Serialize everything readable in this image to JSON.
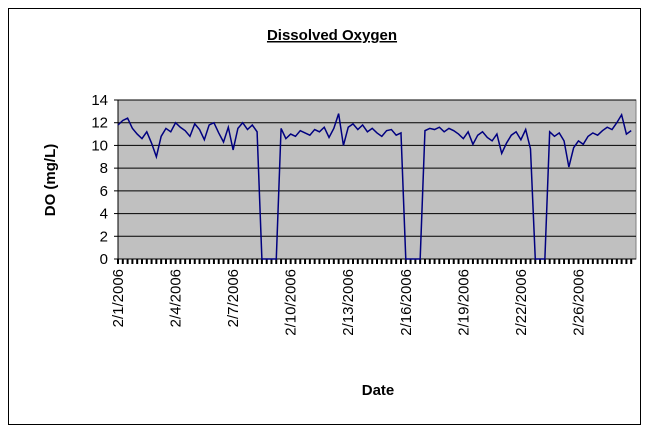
{
  "chart_data": {
    "type": "line",
    "title": "Dissolved Oxygen",
    "x_label": "Date",
    "y_label": "DO (mg/L)",
    "categories": [
      "2/1/2006",
      null,
      null,
      null,
      null,
      null,
      null,
      null,
      null,
      null,
      null,
      null,
      "2/4/2006",
      null,
      null,
      null,
      null,
      null,
      null,
      null,
      null,
      null,
      null,
      null,
      "2/7/2006",
      null,
      null,
      null,
      null,
      null,
      null,
      null,
      null,
      null,
      null,
      null,
      "2/10/2006",
      null,
      null,
      null,
      null,
      null,
      null,
      null,
      null,
      null,
      null,
      null,
      "2/13/2006",
      null,
      null,
      null,
      null,
      null,
      null,
      null,
      null,
      null,
      null,
      null,
      "2/16/2006",
      null,
      null,
      null,
      null,
      null,
      null,
      null,
      null,
      null,
      null,
      null,
      "2/19/2006",
      null,
      null,
      null,
      null,
      null,
      null,
      null,
      null,
      null,
      null,
      null,
      "2/22/2006",
      null,
      null,
      null,
      null,
      null,
      null,
      null,
      null,
      null,
      null,
      null,
      "2/26/2006",
      null,
      null,
      null,
      null,
      null,
      null,
      null,
      null,
      null,
      null,
      null
    ],
    "series": [
      {
        "name": "DO",
        "color": "#000080",
        "values": [
          11.8,
          12.2,
          12.4,
          11.5,
          11,
          10.6,
          11.2,
          10.2,
          9,
          10.8,
          11.5,
          11.2,
          12,
          11.6,
          11.3,
          10.8,
          11.9,
          11.4,
          10.5,
          11.8,
          12,
          11.1,
          10.3,
          11.6,
          9.6,
          11.5,
          12,
          11.4,
          11.8,
          11.2,
          0,
          0,
          0,
          0,
          11.5,
          10.6,
          11,
          10.8,
          11.3,
          11.1,
          10.9,
          11.4,
          11.2,
          11.6,
          10.7,
          11.5,
          12.8,
          10,
          11.6,
          11.9,
          11.4,
          11.8,
          11.2,
          11.5,
          11.1,
          10.8,
          11.3,
          11.4,
          10.9,
          11.1,
          0,
          0,
          0,
          0,
          11.3,
          11.5,
          11.4,
          11.6,
          11.2,
          11.5,
          11.3,
          11,
          10.6,
          11.2,
          10.1,
          10.9,
          11.2,
          10.7,
          10.4,
          11,
          9.3,
          10.2,
          10.9,
          11.2,
          10.5,
          11.4,
          9.7,
          0,
          0,
          0,
          11.2,
          10.8,
          11.1,
          10.4,
          8.1,
          9.8,
          10.4,
          10.1,
          10.8,
          11.1,
          10.9,
          11.3,
          11.6,
          11.4,
          12,
          12.7,
          11,
          11.3
        ]
      }
    ],
    "ylim": [
      0,
      14
    ],
    "yticks": [
      0,
      2,
      4,
      6,
      8,
      10,
      12,
      14
    ],
    "grid": true,
    "plot_background": "#c0c0c0"
  }
}
